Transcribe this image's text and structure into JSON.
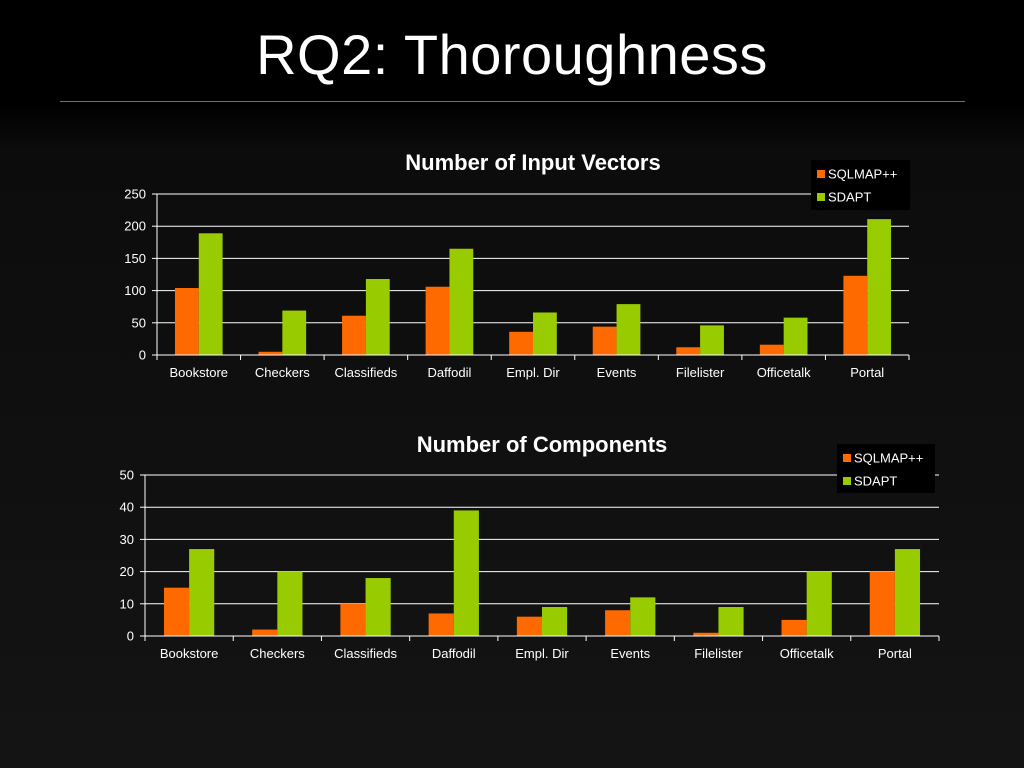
{
  "slide": {
    "title": "RQ2: Thoroughness"
  },
  "colors": {
    "sqlmap": "#ff6a00",
    "sdapt": "#99cc00",
    "grid": "#ffffff"
  },
  "chart_data": [
    {
      "type": "bar",
      "title": "Number of Input Vectors",
      "categories": [
        "Bookstore",
        "Checkers",
        "Classifieds",
        "Daffodil",
        "Empl. Dir",
        "Events",
        "Filelister",
        "Officetalk",
        "Portal"
      ],
      "series": [
        {
          "name": "SQLMAP++",
          "values": [
            104,
            5,
            61,
            106,
            36,
            44,
            12,
            16,
            123
          ]
        },
        {
          "name": "SDAPT",
          "values": [
            189,
            69,
            118,
            165,
            66,
            79,
            46,
            58,
            211
          ]
        }
      ],
      "yticks": [
        "0",
        "50",
        "100",
        "150",
        "200",
        "250"
      ],
      "ylim": [
        0,
        250
      ],
      "grid": true,
      "legend": "top-right"
    },
    {
      "type": "bar",
      "title": "Number of Components",
      "categories": [
        "Bookstore",
        "Checkers",
        "Classifieds",
        "Daffodil",
        "Empl. Dir",
        "Events",
        "Filelister",
        "Officetalk",
        "Portal"
      ],
      "series": [
        {
          "name": "SQLMAP++",
          "values": [
            15,
            2,
            10,
            7,
            6,
            8,
            1,
            5,
            20
          ]
        },
        {
          "name": "SDAPT",
          "values": [
            27,
            20,
            18,
            39,
            9,
            12,
            9,
            20,
            27
          ]
        }
      ],
      "yticks": [
        "0",
        "10",
        "20",
        "30",
        "40",
        "50"
      ],
      "ylim": [
        0,
        50
      ],
      "grid": true,
      "legend": "top-right"
    }
  ]
}
